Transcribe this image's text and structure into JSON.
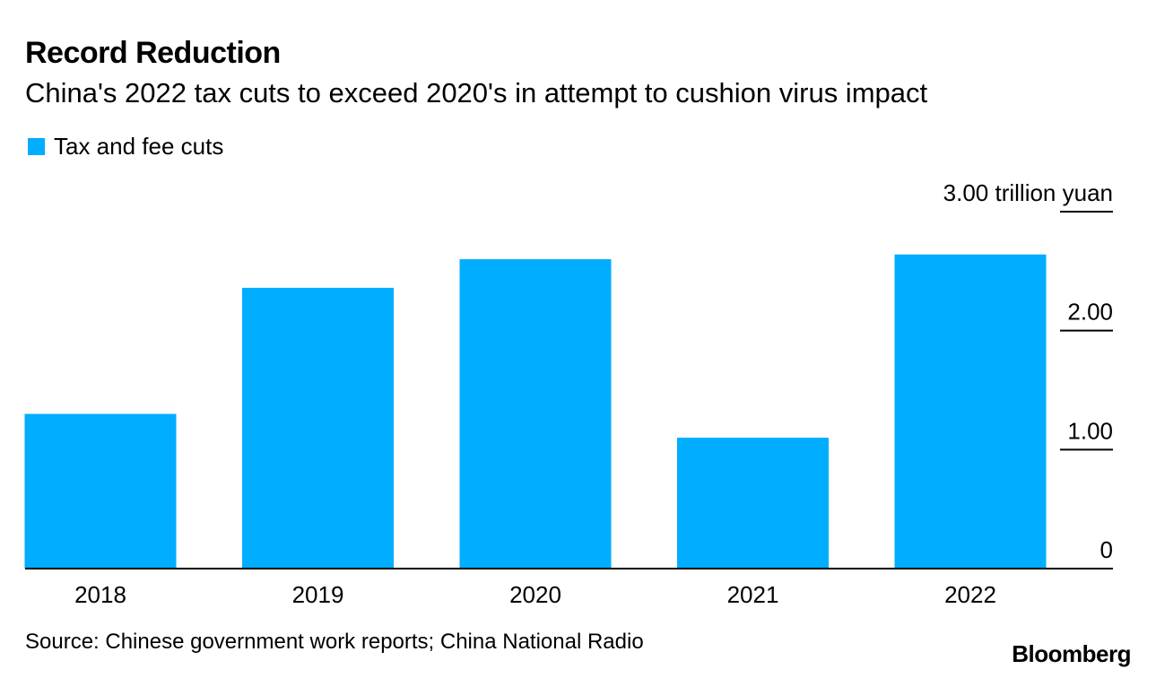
{
  "header": {
    "title": "Record Reduction",
    "subtitle": "China's 2022 tax cuts to exceed 2020's in attempt to cushion virus impact"
  },
  "footer": {
    "source": "Source: Chinese government work reports; China National Radio",
    "brand": "Bloomberg"
  },
  "colors": {
    "bar": "#00ADFF",
    "axis": "#000000"
  },
  "chart_data": {
    "type": "bar",
    "title": "Record Reduction",
    "subtitle": "China's 2022 tax cuts to exceed 2020's in attempt to cushion virus impact",
    "xlabel": "",
    "ylabel": "trillion yuan",
    "ylim": [
      0,
      3.0
    ],
    "yaxis_position": "right",
    "legend_position": "top-left",
    "grid": false,
    "categories": [
      "2018",
      "2019",
      "2020",
      "2021",
      "2022"
    ],
    "series": [
      {
        "name": "Tax and fee cuts",
        "color": "#00ADFF",
        "values": [
          1.3,
          2.36,
          2.6,
          1.1,
          2.64
        ]
      }
    ],
    "yticks": [
      {
        "value": 0,
        "label": "0"
      },
      {
        "value": 1.0,
        "label": "1.00"
      },
      {
        "value": 2.0,
        "label": "2.00"
      },
      {
        "value": 3.0,
        "label": "3.00 trillion yuan"
      }
    ]
  }
}
